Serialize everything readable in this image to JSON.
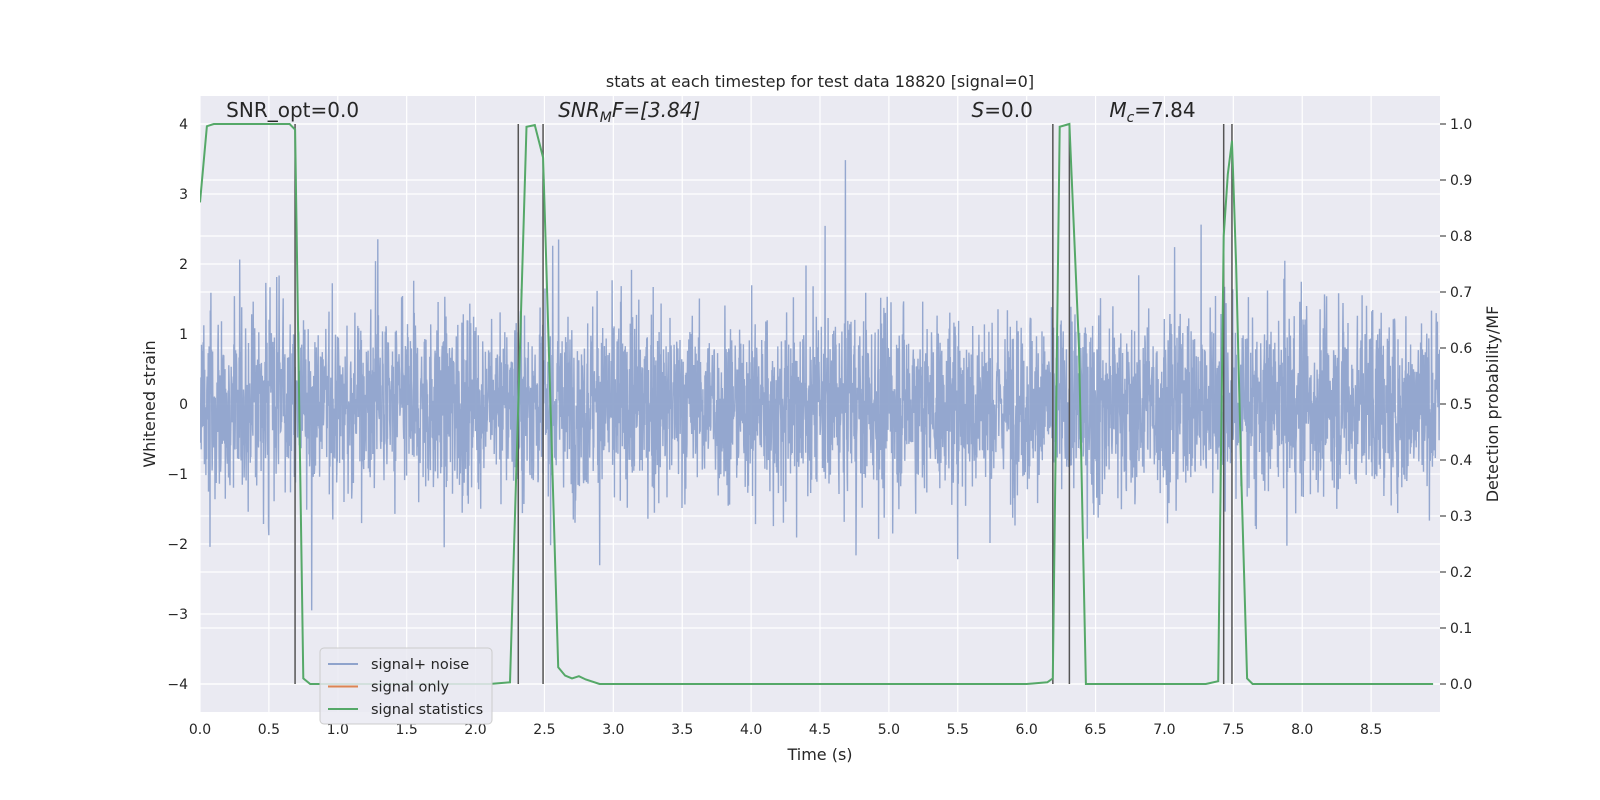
{
  "chart_data": {
    "type": "line",
    "title": "stats at each timestep for test data 18820 [signal=0]",
    "xlabel": "Time (s)",
    "ylabel": "Whitened strain",
    "ylabel_right": "Detection probability/MF",
    "xlim": [
      0,
      9
    ],
    "ylim": [
      -4.4,
      4.4
    ],
    "ylim_right": [
      -0.05,
      1.05
    ],
    "xticks": [
      0.0,
      0.5,
      1.0,
      1.5,
      2.0,
      2.5,
      3.0,
      3.5,
      4.0,
      4.5,
      5.0,
      5.5,
      6.0,
      6.5,
      7.0,
      7.5,
      8.0,
      8.5
    ],
    "xtick_labels": [
      "0.0",
      "0.5",
      "1.0",
      "1.5",
      "2.0",
      "2.5",
      "3.0",
      "3.5",
      "4.0",
      "4.5",
      "5.0",
      "5.5",
      "6.0",
      "6.5",
      "7.0",
      "7.5",
      "8.0",
      "8.5"
    ],
    "yticks": [
      -4,
      -3,
      -2,
      -1,
      0,
      1,
      2,
      3,
      4
    ],
    "ytick_labels": [
      "−4",
      "−3",
      "−2",
      "−1",
      "0",
      "1",
      "2",
      "3",
      "4"
    ],
    "yticks_right": [
      0.0,
      0.1,
      0.2,
      0.3,
      0.4,
      0.5,
      0.6,
      0.7,
      0.8,
      0.9,
      1.0
    ],
    "ytick_labels_right": [
      "0.0",
      "0.1",
      "0.2",
      "0.3",
      "0.4",
      "0.5",
      "0.6",
      "0.7",
      "0.8",
      "0.9",
      "1.0"
    ],
    "grid": true,
    "legend_position": "lower-left",
    "annotations": [
      {
        "text": "SNR_opt=0.0",
        "x": 0.19,
        "y": 4.1,
        "italic": false
      },
      {
        "text": "SNR",
        "sub": "M",
        "rest": "F=[3.84]",
        "x": 2.6,
        "y": 4.1,
        "italic": true
      },
      {
        "text": "S",
        "rest": "=0.0",
        "x": 5.6,
        "y": 4.1,
        "italic": true
      },
      {
        "text": "M",
        "sub": "c",
        "rest": "=7.84",
        "x": 6.6,
        "y": 4.1,
        "italic": true
      }
    ],
    "vlines": [
      0.69,
      2.31,
      2.49,
      6.19,
      6.31,
      7.43,
      7.49
    ],
    "vline_range": [
      -4,
      4
    ],
    "series": [
      {
        "name": "signal+ noise",
        "axis": "left",
        "color": "#8fa3cc",
        "kind": "noise",
        "sample_rate_hz": 1500,
        "typical_range": [
          -1.6,
          1.6
        ],
        "peak_range": [
          -3.7,
          4.0
        ]
      },
      {
        "name": "signal only",
        "axis": "left",
        "color": "#dd8452",
        "x": [
          0,
          9
        ],
        "y": [
          0,
          0
        ]
      },
      {
        "name": "signal statistics",
        "axis": "right",
        "color": "#55a868",
        "x": [
          0.0,
          0.05,
          0.1,
          0.2,
          0.3,
          0.4,
          0.5,
          0.6,
          0.65,
          0.69,
          0.75,
          0.8,
          0.85,
          0.9,
          1.0,
          1.5,
          2.0,
          2.1,
          2.25,
          2.31,
          2.37,
          2.43,
          2.49,
          2.55,
          2.6,
          2.65,
          2.7,
          2.75,
          2.8,
          2.9,
          3.0,
          3.5,
          4.0,
          4.5,
          5.0,
          5.5,
          6.0,
          6.15,
          6.19,
          6.24,
          6.31,
          6.38,
          6.43,
          6.5,
          6.7,
          6.9,
          7.0,
          7.1,
          7.3,
          7.39,
          7.43,
          7.46,
          7.49,
          7.52,
          7.56,
          7.6,
          7.64,
          7.7,
          7.8,
          8.0,
          8.5,
          8.95
        ],
        "y": [
          0.86,
          0.996,
          1.0,
          1.0,
          1.0,
          1.0,
          1.0,
          1.0,
          1.0,
          0.99,
          0.01,
          0.0,
          0.0,
          0.0,
          0.0,
          0.0,
          0.0,
          0.0,
          0.003,
          0.5,
          0.995,
          0.998,
          0.94,
          0.45,
          0.03,
          0.015,
          0.01,
          0.014,
          0.008,
          0.0,
          0.0,
          0.0,
          0.0,
          0.0,
          0.0,
          0.0,
          0.0,
          0.003,
          0.01,
          0.995,
          1.0,
          0.6,
          0.0,
          0.0,
          0.0,
          0.0,
          0.0,
          0.0,
          0.0,
          0.005,
          0.8,
          0.91,
          0.97,
          0.75,
          0.35,
          0.01,
          0.0,
          0.0,
          0.0,
          0.0,
          0.0,
          0.0
        ]
      }
    ]
  }
}
